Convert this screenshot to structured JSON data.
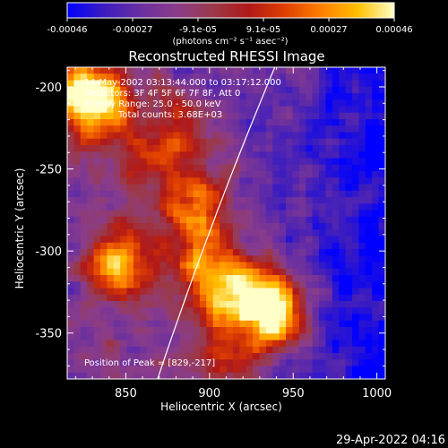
{
  "chart_data": {
    "type": "heatmap",
    "title": "Reconstructed RHESSI Image",
    "xlabel": "Heliocentric X (arcsec)",
    "ylabel": "Heliocentric Y (arcsec)",
    "xlim": [
      815,
      1005
    ],
    "ylim": [
      -378,
      -188
    ],
    "x_ticks": [
      "850",
      "900",
      "950",
      "1000"
    ],
    "x_tick_values": [
      850,
      900,
      950,
      1000
    ],
    "y_ticks": [
      "-200",
      "-250",
      "-300",
      "-350"
    ],
    "y_tick_values": [
      -200,
      -250,
      -300,
      -350
    ],
    "colorbar": {
      "min": -0.00046,
      "max": 0.00046,
      "ticks": [
        "-0.00046",
        "-0.00027",
        "-9.1e-05",
        "9.1e-05",
        "0.00027",
        "0.00046"
      ],
      "unit_label": "(photons cm⁻² s⁻¹ asec⁻²)",
      "colors": [
        "#0000ff",
        "#3b1cc0",
        "#6a2fa0",
        "#8a3c8a",
        "#9b3a4a",
        "#b01818",
        "#e04000",
        "#ff8000",
        "#ffc000",
        "#ffffc8"
      ]
    },
    "annotations": {
      "time": "14-May-2002 03:13:44.000 to 03:17:12.000",
      "detectors": "Detectors: 3F 4F 5F 6F 7F 8F, Att 0",
      "energy": "Energy Range: 25.0 - 50.0 keV",
      "counts": "Total counts: 3.68E+03",
      "peak": "Position of Peak = [829,-217]"
    },
    "peak": {
      "x": 829,
      "y": -217
    },
    "sources": [
      {
        "x": 832,
        "y": -210,
        "amp": 1.0
      },
      {
        "x": 823,
        "y": -200,
        "amp": 0.55
      },
      {
        "x": 893,
        "y": -268,
        "amp": 0.6
      },
      {
        "x": 845,
        "y": -308,
        "amp": 0.9
      },
      {
        "x": 895,
        "y": -300,
        "amp": 0.55
      },
      {
        "x": 905,
        "y": -325,
        "amp": 0.65
      },
      {
        "x": 930,
        "y": -325,
        "amp": 0.8
      },
      {
        "x": 940,
        "y": -342,
        "amp": 0.9
      },
      {
        "x": 910,
        "y": -362,
        "amp": 0.5
      },
      {
        "x": 878,
        "y": -225,
        "amp": 0.45
      },
      {
        "x": 860,
        "y": -250,
        "amp": 0.35
      }
    ]
  },
  "footer": {
    "timestamp": "29-Apr-2022 04:16"
  }
}
